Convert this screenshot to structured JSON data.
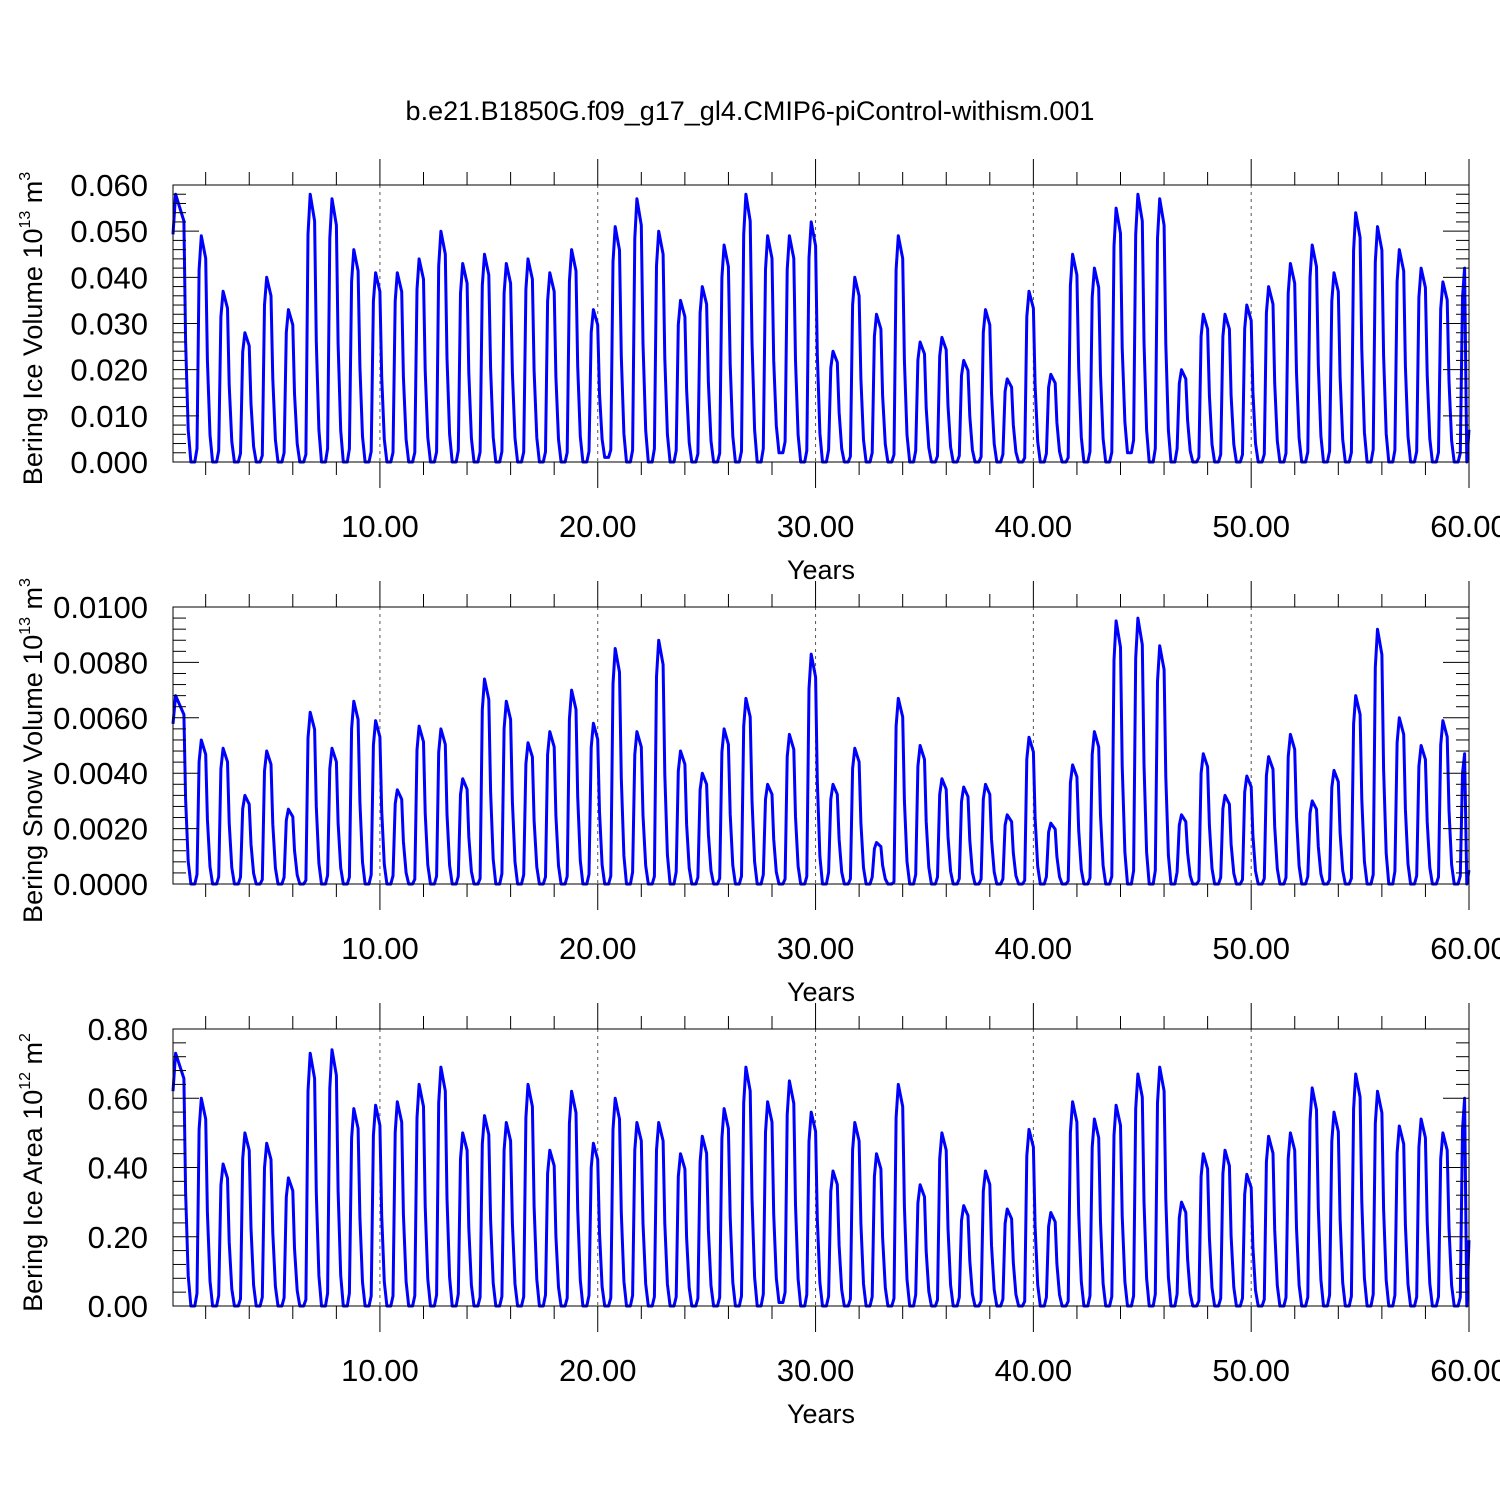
{
  "title": "b.e21.B1850G.f09_g17_gl4.CMIP6-piControl-withism.001",
  "colors": {
    "series": "#0000ff",
    "axes": "#000000",
    "grid": "#555555"
  },
  "chart_data": [
    {
      "type": "line",
      "title": "",
      "xlabel": "Years",
      "ylabel": {
        "text": "Bering Ice Volume 10",
        "sup": "13",
        "unit": " m",
        "unit_sup": "3"
      },
      "xlim": [
        0.5,
        60
      ],
      "ylim": [
        0,
        0.06
      ],
      "xticks": [
        10,
        20,
        30,
        40,
        50,
        60
      ],
      "xtick_labels": [
        "10.00",
        "20.00",
        "30.00",
        "40.00",
        "50.00",
        "60.00"
      ],
      "yticks": [
        0,
        0.01,
        0.02,
        0.03,
        0.04,
        0.05,
        0.06
      ],
      "ytick_labels": [
        "0.000",
        "0.010",
        "0.020",
        "0.030",
        "0.040",
        "0.050",
        "0.060"
      ],
      "vgrid": "dashed at major x ticks",
      "series": [
        {
          "peaks": [
            0.058,
            0.049,
            0.037,
            0.028,
            0.04,
            0.033,
            0.058,
            0.057,
            0.046,
            0.041,
            0.041,
            0.044,
            0.05,
            0.043,
            0.045,
            0.043,
            0.044,
            0.041,
            0.046,
            0.033,
            0.051,
            0.057,
            0.05,
            0.035,
            0.038,
            0.047,
            0.058,
            0.049,
            0.049,
            0.052,
            0.024,
            0.04,
            0.032,
            0.049,
            0.026,
            0.027,
            0.022,
            0.033,
            0.018,
            0.037,
            0.019,
            0.045,
            0.042,
            0.055,
            0.058,
            0.057,
            0.02,
            0.032,
            0.032,
            0.034,
            0.038,
            0.043,
            0.047,
            0.041,
            0.054,
            0.051,
            0.046,
            0.042,
            0.039,
            0.042
          ],
          "minima": [
            0,
            0,
            0,
            0,
            0,
            0,
            0,
            0,
            0,
            0,
            0,
            0,
            0,
            0,
            0,
            0,
            0,
            0,
            0,
            0.001,
            0,
            0,
            0,
            0,
            0,
            0,
            0,
            0.002,
            0,
            0,
            0,
            0,
            0,
            0,
            0,
            0,
            0,
            0,
            0,
            0,
            0,
            0,
            0,
            0.002,
            0,
            0,
            0,
            0,
            0,
            0,
            0,
            0,
            0,
            0,
            0,
            0,
            0,
            0,
            0,
            0
          ],
          "end_value": 0.007
        }
      ]
    },
    {
      "type": "line",
      "title": "",
      "xlabel": "Years",
      "ylabel": {
        "text": "Bering Snow Volume 10",
        "sup": "13",
        "unit": " m",
        "unit_sup": "3"
      },
      "xlim": [
        0.5,
        60
      ],
      "ylim": [
        0,
        0.01
      ],
      "xticks": [
        10,
        20,
        30,
        40,
        50,
        60
      ],
      "xtick_labels": [
        "10.00",
        "20.00",
        "30.00",
        "40.00",
        "50.00",
        "60.00"
      ],
      "yticks": [
        0,
        0.002,
        0.004,
        0.006,
        0.008,
        0.01
      ],
      "ytick_labels": [
        "0.0000",
        "0.0020",
        "0.0040",
        "0.0060",
        "0.0080",
        "0.0100"
      ],
      "vgrid": "dashed at major x ticks",
      "series": [
        {
          "peaks": [
            0.0068,
            0.0052,
            0.0049,
            0.0032,
            0.0048,
            0.0027,
            0.0062,
            0.0049,
            0.0066,
            0.0059,
            0.0034,
            0.0057,
            0.0056,
            0.0038,
            0.0074,
            0.0066,
            0.0051,
            0.0055,
            0.007,
            0.0058,
            0.0085,
            0.0055,
            0.0088,
            0.0048,
            0.004,
            0.0056,
            0.0067,
            0.0036,
            0.0054,
            0.0083,
            0.0036,
            0.0049,
            0.0015,
            0.0067,
            0.005,
            0.0038,
            0.0035,
            0.0036,
            0.0025,
            0.0053,
            0.0022,
            0.0043,
            0.0055,
            0.0095,
            0.0096,
            0.0086,
            0.0025,
            0.0047,
            0.0032,
            0.0039,
            0.0046,
            0.0054,
            0.003,
            0.0041,
            0.0068,
            0.0092,
            0.006,
            0.005,
            0.0059,
            0.0047
          ],
          "minima": [
            0,
            0,
            0,
            0,
            0,
            0,
            0,
            0,
            0,
            0,
            0,
            0,
            0,
            0,
            0,
            0,
            0,
            0,
            0,
            0,
            0,
            0,
            0,
            0,
            0,
            0,
            0,
            0,
            0,
            0,
            0,
            0,
            0,
            0,
            0,
            0,
            0,
            0,
            0,
            0,
            0,
            0,
            0,
            0,
            0,
            0,
            0,
            0,
            0,
            0,
            0,
            0,
            0,
            0,
            0,
            0,
            0,
            0,
            0,
            0
          ],
          "end_value": 0.0005
        }
      ]
    },
    {
      "type": "line",
      "title": "",
      "xlabel": "Years",
      "ylabel": {
        "text": "Bering Ice Area 10",
        "sup": "12",
        "unit": " m",
        "unit_sup": "2"
      },
      "xlim": [
        0.5,
        60
      ],
      "ylim": [
        0,
        0.8
      ],
      "xticks": [
        10,
        20,
        30,
        40,
        50,
        60
      ],
      "xtick_labels": [
        "10.00",
        "20.00",
        "30.00",
        "40.00",
        "50.00",
        "60.00"
      ],
      "yticks": [
        0,
        0.2,
        0.4,
        0.6,
        0.8
      ],
      "ytick_labels": [
        "0.00",
        "0.20",
        "0.40",
        "0.60",
        "0.80"
      ],
      "vgrid": "dashed at major x ticks",
      "series": [
        {
          "peaks": [
            0.73,
            0.6,
            0.41,
            0.5,
            0.47,
            0.37,
            0.73,
            0.74,
            0.57,
            0.58,
            0.59,
            0.64,
            0.69,
            0.5,
            0.55,
            0.53,
            0.64,
            0.45,
            0.62,
            0.47,
            0.6,
            0.53,
            0.53,
            0.44,
            0.49,
            0.57,
            0.69,
            0.59,
            0.65,
            0.56,
            0.39,
            0.53,
            0.44,
            0.64,
            0.35,
            0.5,
            0.29,
            0.39,
            0.28,
            0.51,
            0.27,
            0.59,
            0.54,
            0.58,
            0.67,
            0.69,
            0.3,
            0.44,
            0.45,
            0.38,
            0.49,
            0.5,
            0.63,
            0.56,
            0.67,
            0.62,
            0.52,
            0.54,
            0.5,
            0.6
          ],
          "minima": [
            0,
            0,
            0,
            0,
            0,
            0,
            0,
            0,
            0,
            0,
            0,
            0,
            0,
            0,
            0,
            0,
            0,
            0,
            0,
            0,
            0,
            0,
            0,
            0,
            0,
            0,
            0,
            0.01,
            0,
            0,
            0,
            0,
            0,
            0,
            0,
            0,
            0,
            0,
            0,
            0,
            0,
            0,
            0,
            0,
            0,
            0,
            0,
            0,
            0,
            0,
            0,
            0,
            0,
            0,
            0,
            0,
            0,
            0,
            0,
            0
          ],
          "end_value": 0.19
        }
      ]
    }
  ]
}
